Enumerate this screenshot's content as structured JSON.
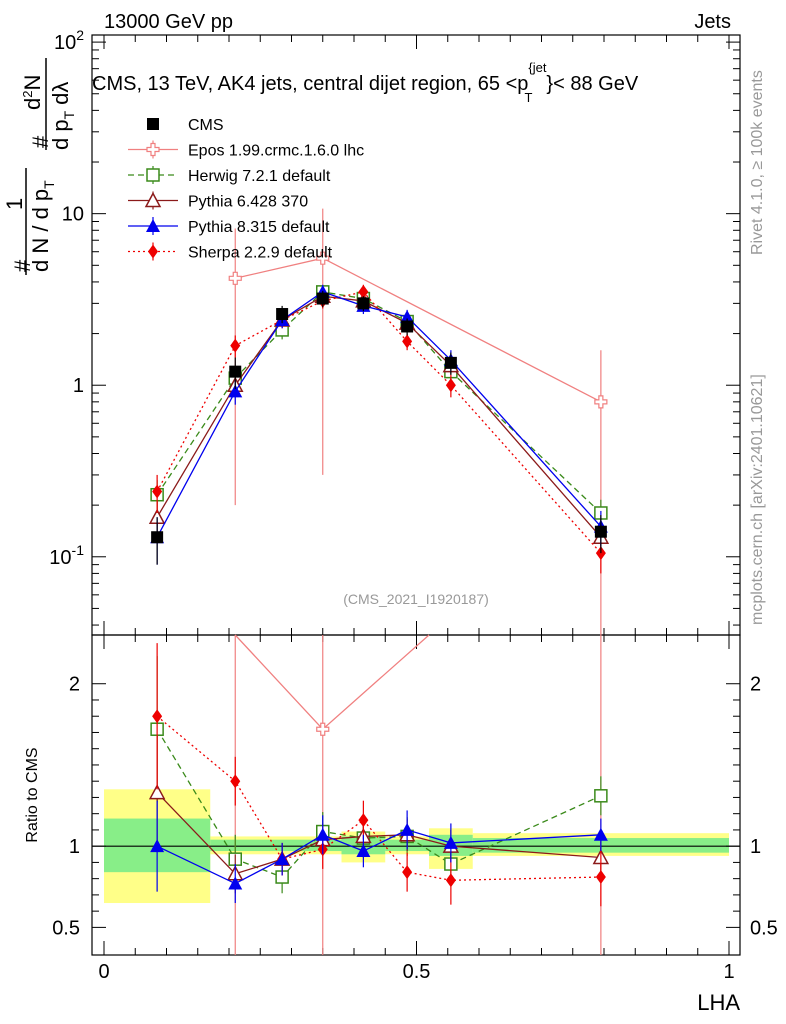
{
  "header": {
    "energy": "13000 GeV pp",
    "category": "Jets",
    "plot_title": "CMS, 13 TeV, AK4 jets, central dijet region, 65 <p",
    "plot_title_sup": "{jet",
    "plot_title_sub": "T",
    "plot_title_end": "}< 88 GeV",
    "side_rivet": "Rivet 4.1.0, ≥ 100k events",
    "side_site": "mcplots.cern.ch [arXiv:2401.10621]",
    "analysis_id": "(CMS_2021_I1920187)"
  },
  "axis_labels": {
    "main_y": "#  1/(d N / d p_T #)  d²N/(d p_T dλ)",
    "main_y_hash": "#",
    "main_y_one": "1",
    "main_y_den": "d N / d p",
    "main_y_den_T": "T",
    "main_y_num": "d",
    "main_y_num_2": "2",
    "main_y_num_N": "N",
    "main_y_den2": "d p",
    "main_y_den2_T": "T",
    "main_y_den2_lambda": "dλ",
    "main_y_hash2": "#",
    "ratio_y": "Ratio to CMS",
    "x": "LHA"
  },
  "colors": {
    "CMS": "#000000",
    "Epos": "#f08080",
    "Herwig": "#3a8a1a",
    "Pythia6": "#8b1a1a",
    "Pythia8": "#0000ee",
    "Sherpa": "#ee0000",
    "band_outer": "#ffff88",
    "band_inner": "#88ee88"
  },
  "chart_data": {
    "type": "line",
    "title": "CMS, 13 TeV, AK4 jets, central dijet region, 65 < p_T^{jet} < 88 GeV",
    "xlabel": "LHA",
    "ylabel": "(1/dN/dp_T) d²N/(dp_T dλ)",
    "xlim": [
      0,
      1
    ],
    "ylim": [
      0.035,
      110
    ],
    "yscale": "log",
    "x_ticks": [
      "0",
      "0.5",
      "1"
    ],
    "y_ticks": [
      "10^{-1}",
      "1",
      "10",
      "10^{2}"
    ],
    "legend_position": "top-left",
    "x": [
      0.085,
      0.21,
      0.285,
      0.35,
      0.415,
      0.485,
      0.555,
      0.795
    ],
    "bin_edges": [
      0,
      0.17,
      0.25,
      0.32,
      0.38,
      0.45,
      0.52,
      0.59,
      1.0
    ],
    "series": [
      {
        "name": "CMS",
        "style": "data",
        "marker": "square-filled",
        "values": [
          0.13,
          1.2,
          2.6,
          3.2,
          3.0,
          2.2,
          1.35,
          0.14
        ],
        "err": [
          0.04,
          0.25,
          0.3,
          0.35,
          0.3,
          0.25,
          0.2,
          0.035
        ]
      },
      {
        "name": "Epos 1.99.crmc.1.6.0 lhc",
        "style": "solid",
        "marker": "plus-open",
        "values": [
          null,
          4.2,
          null,
          5.5,
          null,
          null,
          null,
          0.8
        ],
        "err": [
          null,
          4.0,
          null,
          5.2,
          null,
          null,
          null,
          0.8
        ]
      },
      {
        "name": "Herwig 7.2.1 default",
        "style": "dashed",
        "marker": "square-open",
        "values": [
          0.23,
          1.1,
          2.1,
          3.5,
          3.2,
          2.35,
          1.2,
          0.18
        ],
        "err": [
          0.05,
          0.15,
          0.25,
          0.3,
          0.3,
          0.25,
          0.15,
          0.035
        ]
      },
      {
        "name": "Pythia 6.428 370",
        "style": "solid",
        "marker": "triangle-open",
        "values": [
          0.17,
          1.0,
          2.4,
          3.3,
          3.1,
          2.3,
          1.3,
          0.13
        ],
        "err": [
          0.04,
          0.12,
          0.25,
          0.3,
          0.3,
          0.25,
          0.15,
          0.03
        ]
      },
      {
        "name": "Pythia 8.315 default",
        "style": "solid",
        "marker": "triangle-filled",
        "values": [
          0.13,
          0.92,
          2.4,
          3.5,
          2.9,
          2.5,
          1.4,
          0.15
        ],
        "err": [
          0.04,
          0.15,
          0.25,
          0.35,
          0.3,
          0.25,
          0.2,
          0.035
        ]
      },
      {
        "name": "Sherpa 2.2.9 default",
        "style": "dotted",
        "marker": "diamond-filled",
        "values": [
          0.24,
          1.7,
          2.4,
          3.1,
          3.5,
          1.8,
          1.0,
          0.105
        ],
        "err": [
          0.06,
          0.25,
          0.25,
          0.3,
          0.35,
          0.2,
          0.15,
          0.025
        ]
      }
    ],
    "ratio": {
      "ylabel": "Ratio to CMS",
      "ylim": [
        0.33,
        2.3
      ],
      "y_ticks": [
        "0.5",
        "1",
        "2"
      ],
      "band_outer": [
        [
          0.0,
          0.17,
          0.65,
          1.35
        ],
        [
          0.17,
          0.38,
          0.95,
          1.06
        ],
        [
          0.38,
          0.45,
          0.9,
          1.09
        ],
        [
          0.45,
          0.52,
          0.95,
          1.06
        ],
        [
          0.52,
          0.59,
          0.86,
          1.11
        ],
        [
          0.59,
          1.0,
          0.94,
          1.08
        ]
      ],
      "band_inner": [
        [
          0.0,
          0.17,
          0.84,
          1.17
        ],
        [
          0.17,
          0.38,
          0.97,
          1.04
        ],
        [
          0.38,
          0.45,
          0.95,
          1.06
        ],
        [
          0.45,
          0.52,
          0.97,
          1.04
        ],
        [
          0.52,
          0.59,
          0.94,
          1.07
        ],
        [
          0.59,
          1.0,
          0.96,
          1.05
        ]
      ],
      "series": [
        {
          "name": "Epos 1.99.crmc.1.6.0 lhc",
          "values": [
            null,
            null,
            null,
            1.72,
            null,
            null,
            null,
            null
          ],
          "err": [
            null,
            3.0,
            null,
            3.0,
            null,
            null,
            null,
            5.0
          ]
        },
        {
          "name": "Herwig 7.2.1 default",
          "values": [
            1.72,
            0.92,
            0.81,
            1.09,
            1.05,
            1.06,
            0.89,
            1.31
          ],
          "err": [
            0.45,
            0.15,
            0.1,
            0.12,
            0.12,
            0.12,
            0.1,
            0.12
          ]
        },
        {
          "name": "Pythia 6.428 370",
          "values": [
            1.33,
            0.83,
            0.92,
            1.04,
            1.06,
            1.07,
            1.0,
            0.93
          ],
          "err": [
            0.35,
            0.12,
            0.1,
            0.1,
            0.1,
            0.1,
            0.1,
            0.1
          ]
        },
        {
          "name": "Pythia 8.315 default",
          "values": [
            1.0,
            0.77,
            0.92,
            1.07,
            0.97,
            1.1,
            1.02,
            1.07
          ],
          "err": [
            0.28,
            0.12,
            0.1,
            0.12,
            0.1,
            0.12,
            0.12,
            0.1
          ]
        },
        {
          "name": "Sherpa 2.2.9 default",
          "values": [
            1.8,
            1.4,
            0.92,
            0.98,
            1.16,
            0.84,
            0.79,
            0.81
          ],
          "err": [
            0.45,
            0.15,
            0.1,
            0.12,
            0.12,
            0.12,
            0.15,
            0.18
          ]
        }
      ]
    }
  }
}
